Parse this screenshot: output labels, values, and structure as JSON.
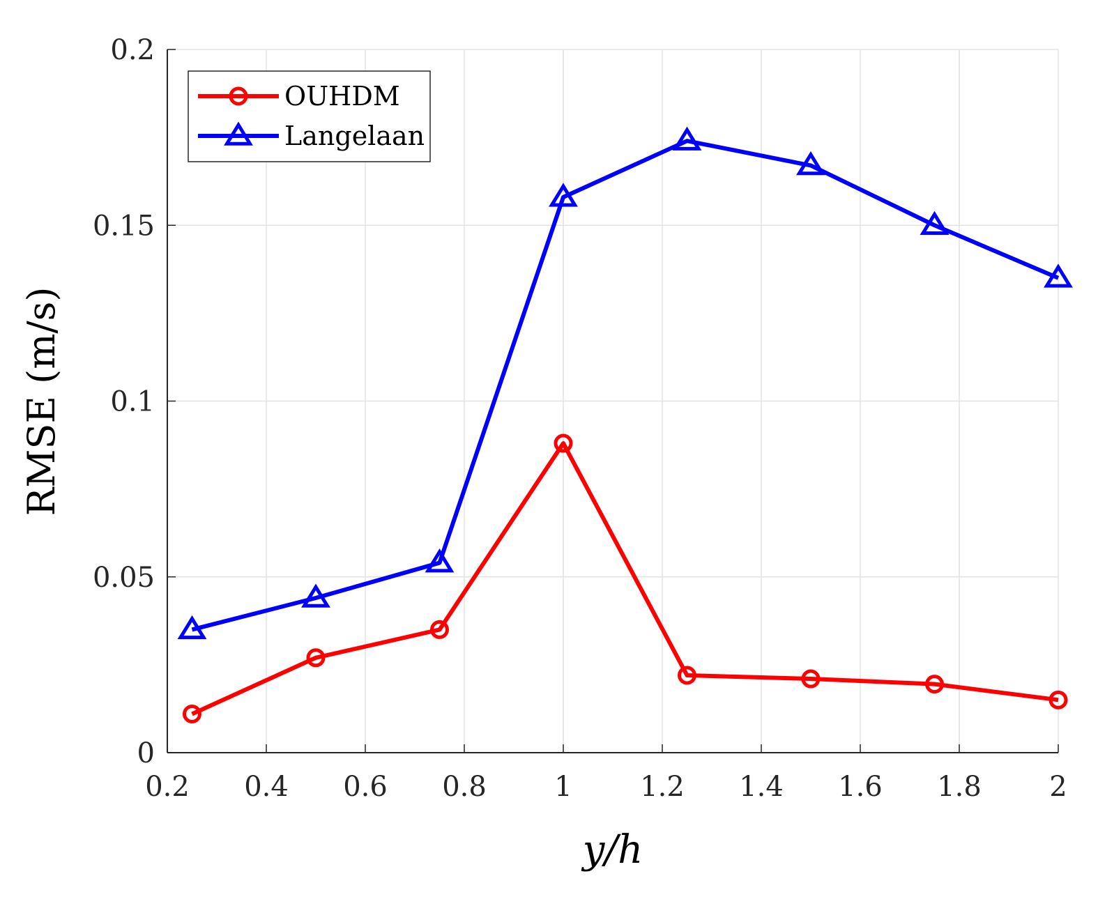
{
  "chart_data": {
    "type": "line",
    "title": "",
    "xlabel": "y/h",
    "ylabel": "RMSE (m/s)",
    "xlim": [
      0.2,
      2
    ],
    "ylim": [
      0,
      0.2
    ],
    "xticks": [
      0.2,
      0.4,
      0.6,
      0.8,
      1,
      1.2,
      1.4,
      1.6,
      1.8,
      2
    ],
    "xtick_labels": [
      "0.2",
      "0.4",
      "0.6",
      "0.8",
      "1",
      "1.2",
      "1.4",
      "1.6",
      "1.8",
      "2"
    ],
    "yticks": [
      0,
      0.05,
      0.1,
      0.15,
      0.2
    ],
    "ytick_labels": [
      "0",
      "0.05",
      "0.1",
      "0.15",
      "0.2"
    ],
    "grid": true,
    "legend_position": "top-left",
    "x": [
      0.25,
      0.5,
      0.75,
      1.0,
      1.25,
      1.5,
      1.75,
      2.0
    ],
    "series": [
      {
        "name": "OUHDM",
        "color": "#ff0000",
        "marker": "circle",
        "values": [
          0.011,
          0.027,
          0.035,
          0.088,
          0.022,
          0.021,
          0.0195,
          0.015
        ]
      },
      {
        "name": "Langelaan",
        "color": "#0000ff",
        "marker": "triangle",
        "values": [
          0.035,
          0.044,
          0.054,
          0.158,
          0.174,
          0.167,
          0.15,
          0.135
        ]
      }
    ]
  }
}
